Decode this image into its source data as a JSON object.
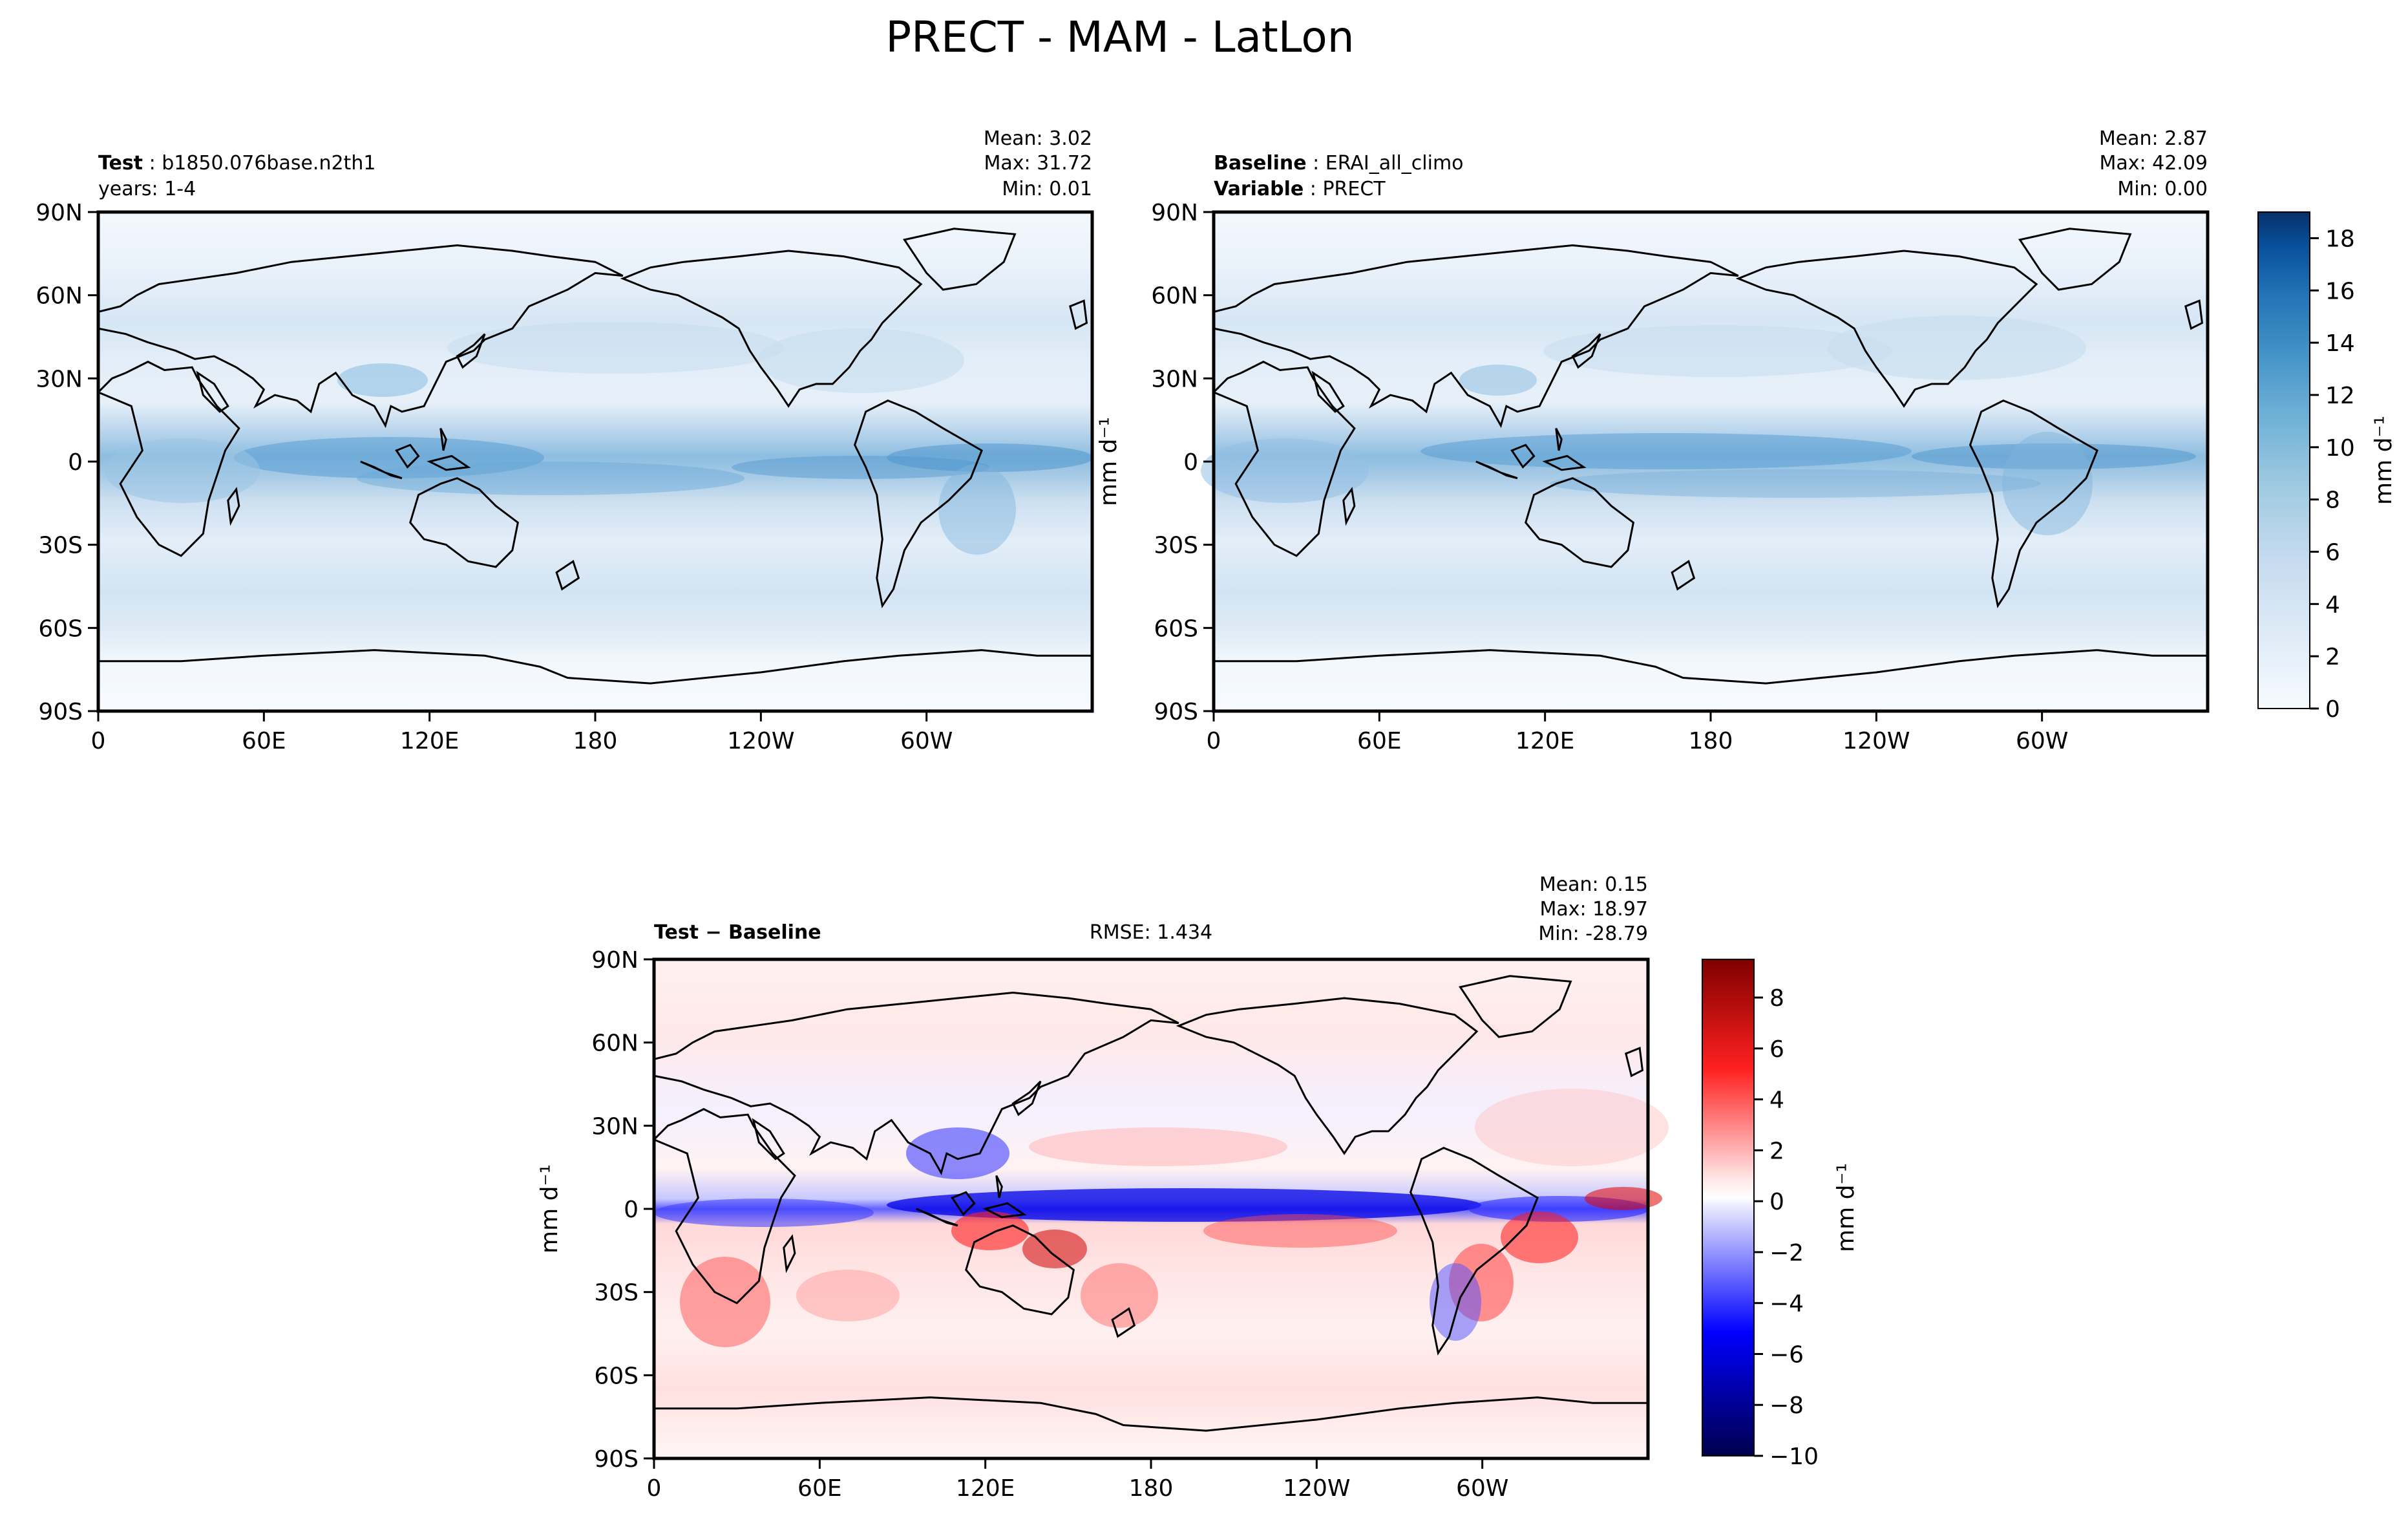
{
  "title": "PRECT - MAM - LatLon",
  "lon_ticks": [
    "0",
    "60E",
    "120E",
    "180",
    "120W",
    "60W"
  ],
  "lat_ticks": [
    "90N",
    "60N",
    "30N",
    "0",
    "30S",
    "60S",
    "90S"
  ],
  "chart_data": [
    {
      "type": "heatmap",
      "id": "test",
      "header": {
        "bold": "Test",
        "sep": " : ",
        "text": "b1850.076base.n2th1",
        "line2": "years: 1-4"
      },
      "stats": [
        "Mean:  3.02",
        "Max: 31.72",
        "Min:  0.01"
      ],
      "stats_values": {
        "mean": 3.02,
        "max": 31.72,
        "min": 0.01
      },
      "ylabel": "",
      "xlim": [
        0,
        360
      ],
      "ylim": [
        -90,
        90
      ],
      "colormap": "blues",
      "zlim": [
        0,
        19
      ],
      "pattern": "field_test"
    },
    {
      "type": "heatmap",
      "id": "baseline",
      "header": {
        "bold": "Baseline",
        "sep": " : ",
        "text": "ERAI_all_climo",
        "bold2": "Variable",
        "text2": "PRECT"
      },
      "stats": [
        "Mean:  2.87",
        "Max: 42.09",
        "Min:  0.00"
      ],
      "stats_values": {
        "mean": 2.87,
        "max": 42.09,
        "min": 0.0
      },
      "ylabel": "mm d⁻¹",
      "xlim": [
        0,
        360
      ],
      "ylim": [
        -90,
        90
      ],
      "colormap": "blues",
      "zlim": [
        0,
        19
      ],
      "colorbar": {
        "label": "mm d⁻¹",
        "ticks": [
          "0",
          "2",
          "4",
          "6",
          "8",
          "10",
          "12",
          "14",
          "16",
          "18"
        ],
        "tick_values": [
          0,
          2,
          4,
          6,
          8,
          10,
          12,
          14,
          16,
          18
        ]
      }
    },
    {
      "type": "heatmap",
      "id": "diff",
      "header": {
        "bold": "Test − Baseline"
      },
      "rmse": "RMSE: 1.434",
      "stats": [
        "Mean:  0.15",
        "Max: 18.97",
        "Min: -28.79"
      ],
      "stats_values": {
        "mean": 0.15,
        "max": 18.97,
        "min": -28.79
      },
      "ylabel": "mm d⁻¹",
      "xlim": [
        0,
        360
      ],
      "ylim": [
        -90,
        90
      ],
      "colormap": "seismic",
      "zlim": [
        -10,
        9.5
      ],
      "colorbar": {
        "label": "mm d⁻¹",
        "ticks": [
          "8",
          "6",
          "4",
          "2",
          "0",
          "−2",
          "−4",
          "−6",
          "−8",
          "−10"
        ],
        "tick_values": [
          8,
          6,
          4,
          2,
          0,
          -2,
          -4,
          -6,
          -8,
          -10
        ]
      }
    }
  ],
  "colors": {
    "blues_low": "#f7fbff",
    "blues_high": "#08306b",
    "seismic_low": "#00004c",
    "seismic_mid": "#ffffff",
    "seismic_high": "#800000",
    "coastline": "#000000"
  }
}
